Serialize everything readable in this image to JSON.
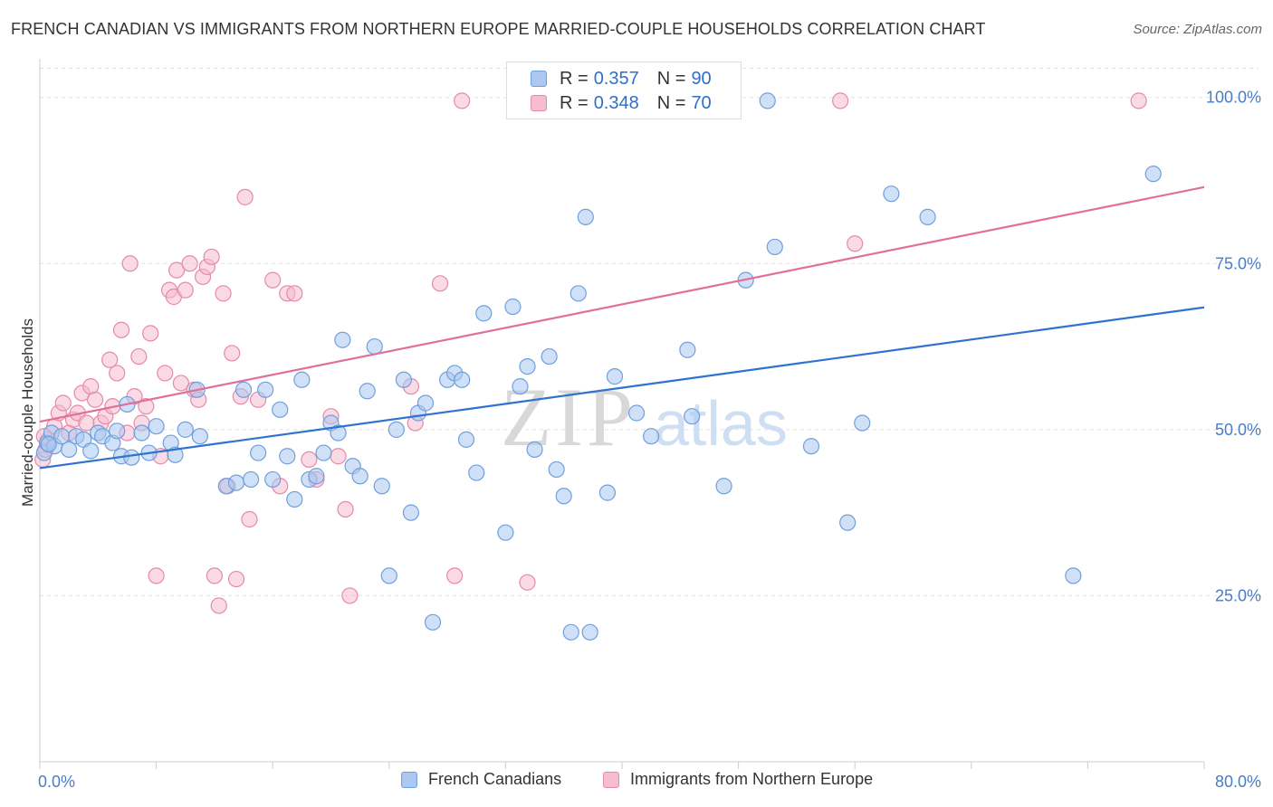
{
  "header": {
    "title": "FRENCH CANADIAN VS IMMIGRANTS FROM NORTHERN EUROPE MARRIED-COUPLE HOUSEHOLDS CORRELATION CHART",
    "source": "Source: ZipAtlas.com"
  },
  "watermark": {
    "part1": "ZIP",
    "part2": "atlas"
  },
  "legend": {
    "rows": [
      {
        "r_label": "R =",
        "r_value": "0.357",
        "n_label": "N =",
        "n_value": "90"
      },
      {
        "r_label": "R =",
        "r_value": "0.348",
        "n_label": "N =",
        "n_value": "70"
      }
    ]
  },
  "chart_data": {
    "type": "scatter",
    "title": "FRENCH CANADIAN VS IMMIGRANTS FROM NORTHERN EUROPE MARRIED-COUPLE HOUSEHOLDS CORRELATION CHART",
    "xlabel": "",
    "ylabel": "Married-couple Households",
    "xlim": [
      0,
      80
    ],
    "ylim": [
      0,
      105
    ],
    "x_tick_labels": [
      "0.0%",
      "80.0%"
    ],
    "y_ticks": [
      25,
      50,
      75,
      100
    ],
    "y_tick_labels": [
      "25.0%",
      "50.0%",
      "75.0%",
      "100.0%"
    ],
    "grid": true,
    "legend_position": "top-center",
    "colors": {
      "blue_fill": "#aac8f0",
      "blue_stroke": "#6f9fdc",
      "blue_line": "#2f72d0",
      "pink_fill": "#f6bccf",
      "pink_stroke": "#e58aa8",
      "pink_line": "#e0709a"
    },
    "series": [
      {
        "name": "French Canadians",
        "color": "#6f9fdc",
        "trend": {
          "x": [
            0,
            80
          ],
          "y": [
            44.2,
            68.4
          ]
        },
        "points": [
          [
            0.3,
            46.5
          ],
          [
            0.5,
            48.0
          ],
          [
            0.8,
            49.5
          ],
          [
            1.0,
            47.5
          ],
          [
            1.5,
            49.0
          ],
          [
            2.0,
            47.0
          ],
          [
            2.5,
            49.0
          ],
          [
            3.0,
            48.5
          ],
          [
            3.5,
            46.8
          ],
          [
            4.0,
            49.5
          ],
          [
            4.3,
            49.0
          ],
          [
            5.0,
            48.0
          ],
          [
            5.3,
            49.8
          ],
          [
            5.6,
            46.0
          ],
          [
            6.0,
            53.8
          ],
          [
            6.3,
            45.8
          ],
          [
            7.0,
            49.5
          ],
          [
            7.5,
            46.5
          ],
          [
            8.0,
            50.5
          ],
          [
            9.0,
            48.0
          ],
          [
            9.3,
            46.2
          ],
          [
            10.0,
            50.0
          ],
          [
            10.8,
            56.0
          ],
          [
            11.0,
            49.0
          ],
          [
            12.8,
            41.5
          ],
          [
            13.5,
            42.0
          ],
          [
            14.0,
            56.0
          ],
          [
            14.5,
            42.5
          ],
          [
            15.0,
            46.5
          ],
          [
            15.5,
            56.0
          ],
          [
            16.0,
            42.5
          ],
          [
            16.5,
            53.0
          ],
          [
            17.0,
            46.0
          ],
          [
            17.5,
            39.5
          ],
          [
            18.0,
            57.5
          ],
          [
            18.5,
            42.5
          ],
          [
            19.0,
            43.0
          ],
          [
            19.5,
            46.5
          ],
          [
            20.0,
            51.0
          ],
          [
            20.5,
            49.5
          ],
          [
            20.8,
            63.5
          ],
          [
            21.5,
            44.5
          ],
          [
            22.0,
            43.0
          ],
          [
            22.5,
            55.8
          ],
          [
            23.0,
            62.5
          ],
          [
            23.5,
            41.5
          ],
          [
            24.0,
            28.0
          ],
          [
            24.5,
            50.0
          ],
          [
            25.0,
            57.5
          ],
          [
            25.5,
            37.5
          ],
          [
            26.0,
            52.5
          ],
          [
            26.5,
            54.0
          ],
          [
            27.0,
            21.0
          ],
          [
            28.0,
            57.5
          ],
          [
            28.5,
            58.5
          ],
          [
            29.0,
            57.5
          ],
          [
            29.3,
            48.5
          ],
          [
            30.0,
            43.5
          ],
          [
            30.5,
            67.5
          ],
          [
            32.0,
            34.5
          ],
          [
            32.5,
            68.5
          ],
          [
            33.0,
            56.5
          ],
          [
            33.5,
            59.5
          ],
          [
            34.0,
            47.0
          ],
          [
            35.0,
            61.0
          ],
          [
            35.5,
            44.0
          ],
          [
            36.0,
            40.0
          ],
          [
            36.5,
            19.5
          ],
          [
            37.0,
            70.5
          ],
          [
            37.5,
            82.0
          ],
          [
            37.8,
            19.5
          ],
          [
            39.0,
            40.5
          ],
          [
            39.5,
            58.0
          ],
          [
            41.0,
            52.5
          ],
          [
            42.0,
            49.0
          ],
          [
            44.5,
            62.0
          ],
          [
            44.8,
            52.0
          ],
          [
            47.0,
            41.5
          ],
          [
            47.5,
            99.5
          ],
          [
            48.5,
            72.5
          ],
          [
            50.0,
            99.5
          ],
          [
            50.5,
            77.5
          ],
          [
            53.0,
            47.5
          ],
          [
            55.5,
            36.0
          ],
          [
            56.5,
            51.0
          ],
          [
            58.5,
            85.5
          ],
          [
            61.0,
            82.0
          ],
          [
            71.0,
            28.0
          ],
          [
            76.5,
            88.5
          ],
          [
            0.6,
            47.8
          ]
        ]
      },
      {
        "name": "Immigrants from Northern Europe",
        "color": "#e58aa8",
        "trend": {
          "x": [
            0,
            80
          ],
          "y": [
            51.2,
            86.5
          ]
        },
        "points": [
          [
            0.2,
            45.5
          ],
          [
            0.4,
            47.0
          ],
          [
            0.6,
            48.5
          ],
          [
            1.0,
            50.5
          ],
          [
            1.3,
            52.5
          ],
          [
            1.6,
            54.0
          ],
          [
            2.0,
            49.5
          ],
          [
            2.3,
            51.5
          ],
          [
            2.6,
            52.5
          ],
          [
            2.9,
            55.5
          ],
          [
            3.2,
            51.0
          ],
          [
            3.5,
            56.5
          ],
          [
            3.8,
            54.5
          ],
          [
            4.2,
            51.0
          ],
          [
            4.5,
            52.0
          ],
          [
            4.8,
            60.5
          ],
          [
            5.0,
            53.5
          ],
          [
            5.3,
            58.5
          ],
          [
            5.6,
            65.0
          ],
          [
            6.0,
            49.5
          ],
          [
            6.2,
            75.0
          ],
          [
            6.5,
            55.0
          ],
          [
            6.8,
            61.0
          ],
          [
            7.0,
            51.0
          ],
          [
            7.3,
            53.5
          ],
          [
            7.6,
            64.5
          ],
          [
            8.0,
            28.0
          ],
          [
            8.3,
            46.0
          ],
          [
            8.6,
            58.5
          ],
          [
            8.9,
            71.0
          ],
          [
            9.2,
            70.0
          ],
          [
            9.4,
            74.0
          ],
          [
            9.7,
            57.0
          ],
          [
            10.0,
            71.0
          ],
          [
            10.3,
            75.0
          ],
          [
            10.6,
            56.0
          ],
          [
            10.9,
            54.5
          ],
          [
            11.2,
            73.0
          ],
          [
            11.5,
            74.5
          ],
          [
            11.8,
            76.0
          ],
          [
            12.0,
            28.0
          ],
          [
            12.3,
            23.5
          ],
          [
            12.6,
            70.5
          ],
          [
            12.9,
            41.5
          ],
          [
            13.2,
            61.5
          ],
          [
            13.5,
            27.5
          ],
          [
            13.8,
            55.0
          ],
          [
            14.1,
            85.0
          ],
          [
            14.4,
            36.5
          ],
          [
            15.0,
            54.5
          ],
          [
            16.0,
            72.5
          ],
          [
            16.5,
            41.5
          ],
          [
            17.0,
            70.5
          ],
          [
            17.5,
            70.5
          ],
          [
            18.5,
            45.5
          ],
          [
            19.0,
            42.5
          ],
          [
            20.0,
            52.0
          ],
          [
            20.5,
            46.0
          ],
          [
            21.0,
            38.0
          ],
          [
            21.3,
            25.0
          ],
          [
            25.5,
            56.5
          ],
          [
            25.8,
            51.0
          ],
          [
            27.5,
            72.0
          ],
          [
            28.5,
            28.0
          ],
          [
            29.0,
            99.5
          ],
          [
            33.5,
            27.0
          ],
          [
            55.0,
            99.5
          ],
          [
            56.0,
            78.0
          ],
          [
            75.5,
            99.5
          ],
          [
            0.3,
            49.0
          ]
        ]
      }
    ]
  },
  "bottom_legend": {
    "items": [
      {
        "label": "French Canadians"
      },
      {
        "label": "Immigrants from Northern Europe"
      }
    ]
  }
}
